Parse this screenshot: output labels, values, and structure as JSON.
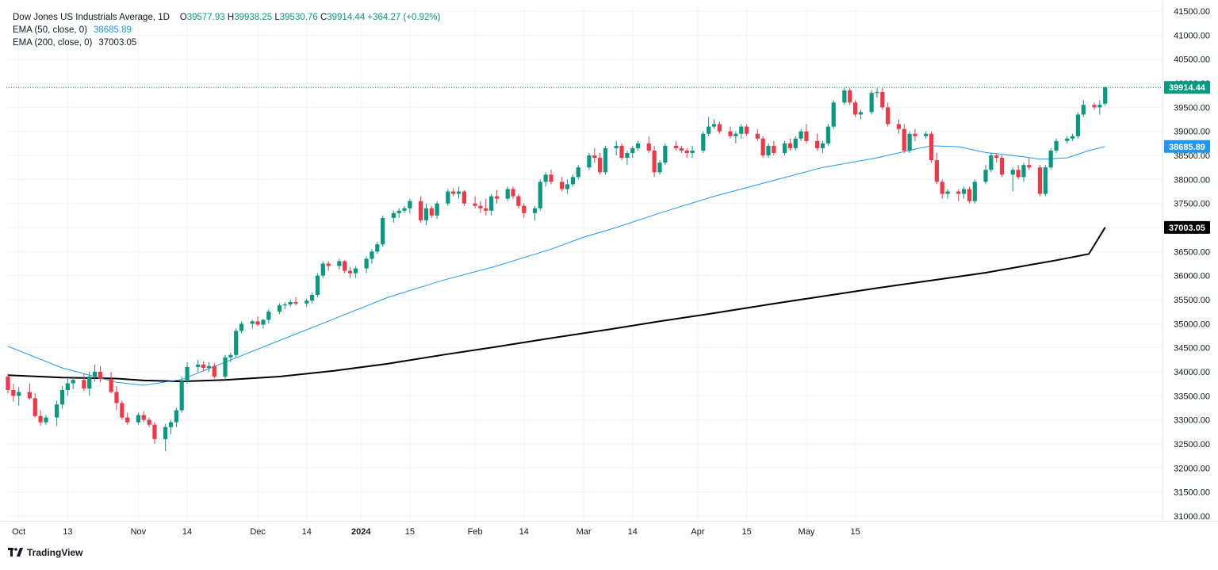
{
  "chart_data": {
    "type": "candlestick",
    "title": "Dow Jones US Industrials Average, 1D",
    "ohlc": {
      "open_label": "O",
      "open": "39577.93",
      "high_label": "H",
      "high": "39938.25",
      "low_label": "L",
      "low": "39530.76",
      "close_label": "C",
      "close": "39914.44",
      "change": "+364.27 (+0.92%)"
    },
    "indicators": [
      {
        "name": "EMA (50, close, 0)",
        "value": "38685.89",
        "color": "#2196f3"
      },
      {
        "name": "EMA (200, close, 0)",
        "value": "37003.05",
        "color": "#000000"
      }
    ],
    "y_axis": {
      "min": 30900,
      "max": 41600,
      "ticks": [
        "41500.00",
        "41000.00",
        "40500.00",
        "40000.00",
        "39500.00",
        "39000.00",
        "38500.00",
        "38000.00",
        "37500.00",
        "37000.00",
        "36500.00",
        "36000.00",
        "35500.00",
        "35000.00",
        "34500.00",
        "34000.00",
        "33500.00",
        "33000.00",
        "32500.00",
        "32000.00",
        "31500.00",
        "31000.00"
      ]
    },
    "x_axis": {
      "labels": [
        {
          "text": "Oct",
          "index": 2,
          "bold": false
        },
        {
          "text": "13",
          "index": 11,
          "bold": false
        },
        {
          "text": "Nov",
          "index": 24,
          "bold": false
        },
        {
          "text": "14",
          "index": 33,
          "bold": false
        },
        {
          "text": "Dec",
          "index": 46,
          "bold": false
        },
        {
          "text": "14",
          "index": 55,
          "bold": false
        },
        {
          "text": "2024",
          "index": 65,
          "bold": true
        },
        {
          "text": "15",
          "index": 74,
          "bold": false
        },
        {
          "text": "Feb",
          "index": 86,
          "bold": false
        },
        {
          "text": "14",
          "index": 95,
          "bold": false
        },
        {
          "text": "Mar",
          "index": 106,
          "bold": false
        },
        {
          "text": "14",
          "index": 115,
          "bold": false
        },
        {
          "text": "Apr",
          "index": 127,
          "bold": false
        },
        {
          "text": "15",
          "index": 136,
          "bold": false
        },
        {
          "text": "May",
          "index": 147,
          "bold": false
        },
        {
          "text": "15",
          "index": 156,
          "bold": false
        }
      ]
    },
    "last_price": {
      "value": 39914.44,
      "label": "39914.44",
      "color": "#089981"
    },
    "ema50_badge": {
      "value": 38685.89,
      "label": "38685.89",
      "color": "#2196f3"
    },
    "ema200_badge": {
      "value": 37003.05,
      "label": "37003.05",
      "color": "#000000"
    },
    "candles": [
      [
        33900,
        33960,
        33550,
        33620
      ],
      [
        33620,
        33750,
        33380,
        33500
      ],
      [
        33500,
        33680,
        33300,
        33580
      ],
      [
        33580,
        33760,
        33420,
        33450
      ],
      [
        33450,
        33560,
        33050,
        33080
      ],
      [
        33080,
        33200,
        32880,
        32950
      ],
      [
        32950,
        33100,
        32900,
        33050
      ],
      [
        33050,
        33400,
        32870,
        33320
      ],
      [
        33320,
        33700,
        33230,
        33620
      ],
      [
        33620,
        33850,
        33500,
        33760
      ],
      [
        33760,
        33900,
        33640,
        33830
      ],
      [
        33830,
        33950,
        33600,
        33650
      ],
      [
        33650,
        34000,
        33500,
        33900
      ],
      [
        33900,
        34150,
        33800,
        34000
      ],
      [
        34000,
        34120,
        33780,
        33850
      ],
      [
        33850,
        34000,
        33550,
        33580
      ],
      [
        33580,
        33700,
        33200,
        33350
      ],
      [
        33350,
        33400,
        33000,
        33050
      ],
      [
        33050,
        33150,
        32900,
        32950
      ],
      [
        32950,
        33150,
        32900,
        33100
      ],
      [
        33100,
        33180,
        32950,
        33000
      ],
      [
        33000,
        33050,
        32850,
        32900
      ],
      [
        32900,
        32950,
        32500,
        32600
      ],
      [
        32600,
        32920,
        32350,
        32850
      ],
      [
        32850,
        33000,
        32700,
        32950
      ],
      [
        32950,
        33250,
        32850,
        33200
      ],
      [
        33200,
        33900,
        33150,
        33800
      ],
      [
        33800,
        34200,
        33750,
        34100
      ],
      [
        34100,
        34250,
        34000,
        34150
      ],
      [
        34150,
        34220,
        34020,
        34080
      ],
      [
        34080,
        34200,
        34000,
        34120
      ],
      [
        34120,
        34180,
        33860,
        33900
      ],
      [
        33900,
        34350,
        33850,
        34300
      ],
      [
        34300,
        34400,
        34200,
        34350
      ],
      [
        34350,
        34900,
        34300,
        34850
      ],
      [
        34850,
        35050,
        34800,
        35000
      ],
      [
        35000,
        35080,
        34900,
        35050
      ],
      [
        35050,
        35150,
        34950,
        34980
      ],
      [
        34980,
        35100,
        34900,
        35080
      ],
      [
        35080,
        35300,
        35000,
        35250
      ],
      [
        35250,
        35420,
        35200,
        35380
      ],
      [
        35380,
        35450,
        35300,
        35400
      ],
      [
        35400,
        35500,
        35350,
        35450
      ],
      [
        35450,
        35550,
        35380,
        35420
      ],
      [
        35420,
        35520,
        35350,
        35480
      ],
      [
        35480,
        35650,
        35420,
        35600
      ],
      [
        35600,
        36050,
        35550,
        36000
      ],
      [
        36000,
        36300,
        35950,
        36250
      ],
      [
        36250,
        36300,
        36100,
        36200
      ],
      [
        36200,
        36350,
        36120,
        36300
      ],
      [
        36300,
        36320,
        36050,
        36100
      ],
      [
        36100,
        36180,
        35950,
        36050
      ],
      [
        36050,
        36200,
        35950,
        36150
      ],
      [
        36150,
        36400,
        36050,
        36350
      ],
      [
        36350,
        36550,
        36250,
        36500
      ],
      [
        36500,
        36700,
        36450,
        36650
      ],
      [
        36650,
        37250,
        36600,
        37200
      ],
      [
        37200,
        37350,
        37100,
        37300
      ],
      [
        37300,
        37400,
        37200,
        37350
      ],
      [
        37350,
        37450,
        37300,
        37400
      ],
      [
        37400,
        37600,
        37300,
        37550
      ],
      [
        37550,
        37650,
        37100,
        37150
      ],
      [
        37150,
        37500,
        37050,
        37400
      ],
      [
        37400,
        37450,
        37200,
        37250
      ],
      [
        37250,
        37550,
        37180,
        37500
      ],
      [
        37500,
        37800,
        37450,
        37750
      ],
      [
        37750,
        37820,
        37650,
        37700
      ],
      [
        37700,
        37850,
        37600,
        37750
      ],
      [
        37750,
        37780,
        37450,
        37500
      ],
      [
        37500,
        37650,
        37400,
        37450
      ],
      [
        37450,
        37550,
        37300,
        37400
      ],
      [
        37400,
        37600,
        37250,
        37350
      ],
      [
        37350,
        37700,
        37250,
        37650
      ],
      [
        37650,
        37780,
        37500,
        37600
      ],
      [
        37600,
        37850,
        37550,
        37800
      ],
      [
        37800,
        37850,
        37600,
        37650
      ],
      [
        37650,
        37700,
        37400,
        37450
      ],
      [
        37450,
        37500,
        37200,
        37300
      ],
      [
        37300,
        37450,
        37150,
        37400
      ],
      [
        37400,
        38000,
        37350,
        37950
      ],
      [
        37950,
        38150,
        37850,
        38100
      ],
      [
        38100,
        38200,
        37900,
        37950
      ],
      [
        37950,
        38050,
        37750,
        37800
      ],
      [
        37800,
        38000,
        37700,
        37900
      ],
      [
        37900,
        38100,
        37850,
        38050
      ],
      [
        38050,
        38300,
        38000,
        38250
      ],
      [
        38250,
        38550,
        38200,
        38500
      ],
      [
        38500,
        38650,
        38350,
        38450
      ],
      [
        38450,
        38550,
        38100,
        38150
      ],
      [
        38150,
        38700,
        38100,
        38650
      ],
      [
        38650,
        38800,
        38500,
        38700
      ],
      [
        38700,
        38750,
        38400,
        38450
      ],
      [
        38450,
        38600,
        38300,
        38550
      ],
      [
        38550,
        38700,
        38450,
        38650
      ],
      [
        38650,
        38800,
        38600,
        38750
      ],
      [
        38750,
        38900,
        38550,
        38600
      ],
      [
        38600,
        38700,
        38050,
        38150
      ],
      [
        38150,
        38400,
        38100,
        38350
      ],
      [
        38350,
        38750,
        38300,
        38700
      ],
      [
        38700,
        38800,
        38600,
        38650
      ],
      [
        38650,
        38700,
        38550,
        38600
      ],
      [
        38600,
        38650,
        38450,
        38550
      ],
      [
        38550,
        38700,
        38450,
        38600
      ],
      [
        38600,
        39000,
        38550,
        38950
      ],
      [
        38950,
        39300,
        38900,
        39100
      ],
      [
        39100,
        39250,
        39050,
        39150
      ],
      [
        39150,
        39200,
        38950,
        39000
      ],
      [
        39000,
        39100,
        38850,
        38900
      ],
      [
        38900,
        39000,
        38750,
        38950
      ],
      [
        38950,
        39150,
        38850,
        39100
      ],
      [
        39100,
        39150,
        38900,
        38950
      ],
      [
        38950,
        39050,
        38800,
        38850
      ],
      [
        38850,
        38900,
        38450,
        38500
      ],
      [
        38500,
        38750,
        38450,
        38700
      ],
      [
        38700,
        38800,
        38500,
        38550
      ],
      [
        38550,
        38800,
        38500,
        38750
      ],
      [
        38750,
        38850,
        38600,
        38650
      ],
      [
        38650,
        38900,
        38600,
        38850
      ],
      [
        38850,
        39050,
        38800,
        39000
      ],
      [
        39000,
        39150,
        38750,
        38800
      ],
      [
        38800,
        38950,
        38600,
        38650
      ],
      [
        38650,
        38800,
        38550,
        38750
      ],
      [
        38750,
        39150,
        38700,
        39100
      ],
      [
        39100,
        39650,
        39050,
        39600
      ],
      [
        39600,
        39900,
        39550,
        39850
      ],
      [
        39850,
        39900,
        39550,
        39600
      ],
      [
        39600,
        39650,
        39300,
        39350
      ],
      [
        39350,
        39450,
        39250,
        39400
      ],
      [
        39400,
        39850,
        39350,
        39800
      ],
      [
        39800,
        39900,
        39700,
        39820
      ],
      [
        39820,
        39900,
        39450,
        39500
      ],
      [
        39500,
        39600,
        39100,
        39150
      ],
      [
        39150,
        39250,
        38950,
        39050
      ],
      [
        39050,
        39150,
        38550,
        38600
      ],
      [
        38600,
        39000,
        38550,
        38950
      ],
      [
        38950,
        39050,
        38800,
        38900
      ],
      [
        38900,
        39000,
        38850,
        38950
      ],
      [
        38950,
        39000,
        38350,
        38400
      ],
      [
        38400,
        38550,
        37900,
        37950
      ],
      [
        37950,
        38000,
        37600,
        37700
      ],
      [
        37700,
        37800,
        37600,
        37750
      ],
      [
        37750,
        37800,
        37550,
        37700
      ],
      [
        37700,
        37850,
        37600,
        37800
      ],
      [
        37800,
        37850,
        37500,
        37550
      ],
      [
        37550,
        38000,
        37500,
        37950
      ],
      [
        37950,
        38300,
        37900,
        38200
      ],
      [
        38200,
        38550,
        38150,
        38500
      ],
      [
        38500,
        38550,
        38350,
        38450
      ],
      [
        38450,
        38500,
        38050,
        38100
      ],
      [
        38100,
        38250,
        37750,
        38200
      ],
      [
        38200,
        38300,
        38000,
        38050
      ],
      [
        38050,
        38350,
        37950,
        38300
      ],
      [
        38300,
        38450,
        38200,
        38250
      ],
      [
        38250,
        38300,
        37650,
        37700
      ],
      [
        37700,
        38300,
        37650,
        38250
      ],
      [
        38250,
        38650,
        38200,
        38600
      ],
      [
        38600,
        38850,
        38550,
        38800
      ],
      [
        38800,
        38900,
        38750,
        38850
      ],
      [
        38850,
        38950,
        38800,
        38900
      ],
      [
        38900,
        39400,
        38850,
        39350
      ],
      [
        39350,
        39650,
        39300,
        39550
      ],
      [
        39550,
        39600,
        39450,
        39500
      ],
      [
        39500,
        39650,
        39350,
        39550
      ],
      [
        39577.93,
        39938.25,
        39530.76,
        39914.44
      ]
    ],
    "ema50": [
      [
        0,
        34530
      ],
      [
        10,
        34080
      ],
      [
        20,
        33780
      ],
      [
        25,
        33720
      ],
      [
        32,
        33840
      ],
      [
        40,
        34200
      ],
      [
        50,
        34650
      ],
      [
        60,
        35100
      ],
      [
        70,
        35550
      ],
      [
        80,
        35900
      ],
      [
        90,
        36200
      ],
      [
        100,
        36550
      ],
      [
        106,
        36800
      ],
      [
        112,
        37000
      ],
      [
        120,
        37300
      ],
      [
        130,
        37650
      ],
      [
        140,
        37950
      ],
      [
        150,
        38250
      ],
      [
        160,
        38450
      ],
      [
        167,
        38630
      ],
      [
        170,
        38700
      ],
      [
        175,
        38680
      ],
      [
        180,
        38560
      ],
      [
        187,
        38470
      ],
      [
        190,
        38420
      ],
      [
        195,
        38450
      ],
      [
        199,
        38600
      ],
      [
        202,
        38685.89
      ]
    ],
    "ema200": [
      [
        0,
        33930
      ],
      [
        10,
        33880
      ],
      [
        20,
        33860
      ],
      [
        25,
        33820
      ],
      [
        32,
        33800
      ],
      [
        40,
        33830
      ],
      [
        50,
        33900
      ],
      [
        60,
        34020
      ],
      [
        70,
        34170
      ],
      [
        80,
        34350
      ],
      [
        90,
        34520
      ],
      [
        100,
        34700
      ],
      [
        110,
        34870
      ],
      [
        120,
        35050
      ],
      [
        130,
        35220
      ],
      [
        140,
        35400
      ],
      [
        150,
        35570
      ],
      [
        160,
        35740
      ],
      [
        170,
        35900
      ],
      [
        180,
        36060
      ],
      [
        187,
        36200
      ],
      [
        193,
        36320
      ],
      [
        199,
        36450
      ],
      [
        202,
        37003.05
      ]
    ]
  },
  "branding": {
    "logo_text": "TradingView"
  }
}
